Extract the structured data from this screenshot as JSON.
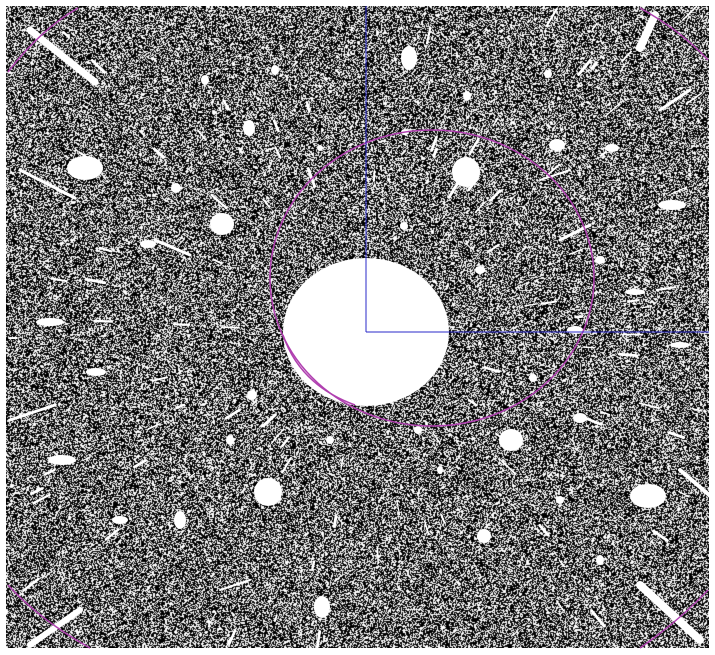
{
  "image": {
    "background": "#000000",
    "foreground": "#ffffff",
    "noise_density": 0.42
  },
  "overlays": {
    "circle_color": "#b040b0",
    "axis_color": "#2828c8",
    "label_color": "#c040c0"
  },
  "labels": {
    "line1": "",
    "line2": ""
  }
}
